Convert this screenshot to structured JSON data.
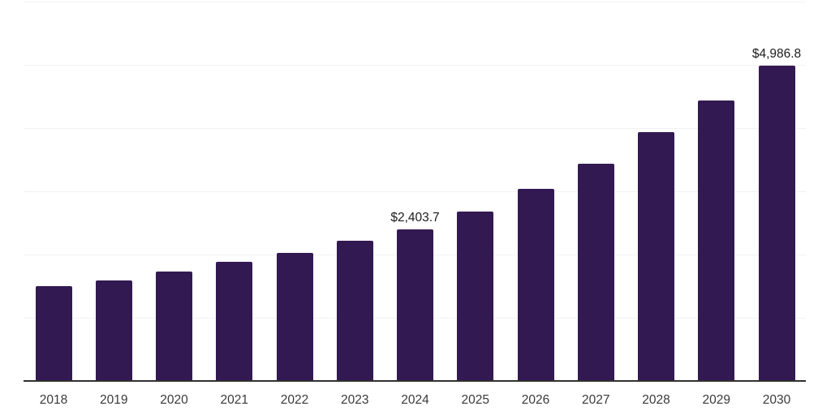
{
  "chart_data": {
    "type": "bar",
    "title": "",
    "xlabel": "",
    "ylabel": "",
    "categories": [
      "2018",
      "2019",
      "2020",
      "2021",
      "2022",
      "2023",
      "2024",
      "2025",
      "2026",
      "2027",
      "2028",
      "2029",
      "2030"
    ],
    "values": [
      1500,
      1590,
      1730,
      1885,
      2025,
      2215,
      2403.7,
      2680,
      3040,
      3435,
      3935,
      4435,
      4986.8
    ],
    "data_labels": [
      {
        "category": "2024",
        "text": "$2,403.7"
      },
      {
        "category": "2030",
        "text": "$4,986.8"
      }
    ],
    "ylim": [
      0,
      6000
    ],
    "y_gridline_interval": 1000,
    "y_axis_tick_labels_shown": false,
    "grid": "horizontal",
    "legend": "none",
    "colors": {
      "bar": "#331952",
      "axis_line": "#303030",
      "gridline": "#f2f2f2",
      "tick_label": "#3a3a3a",
      "data_label": "#1c1c1c",
      "background": "#ffffff"
    }
  }
}
